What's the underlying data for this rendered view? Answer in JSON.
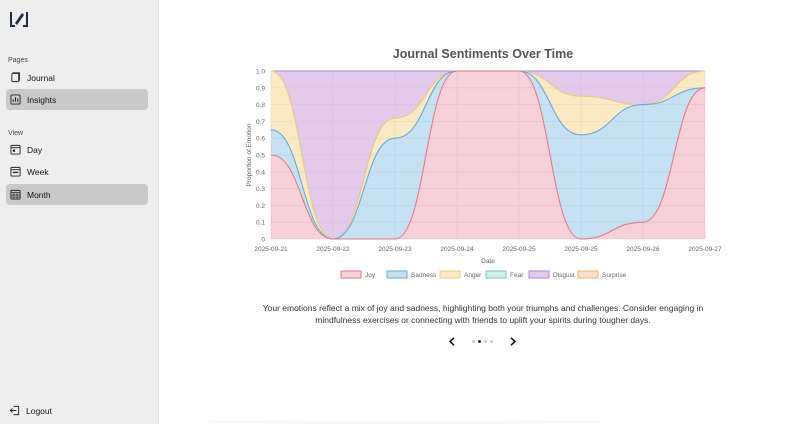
{
  "sidebar": {
    "sections": [
      {
        "label": "Pages",
        "items": [
          {
            "label": "Journal",
            "icon": "journal-icon",
            "active": false
          },
          {
            "label": "Insights",
            "icon": "chart-icon",
            "active": true
          }
        ]
      },
      {
        "label": "View",
        "items": [
          {
            "label": "Day",
            "icon": "calendar-day-icon",
            "active": false
          },
          {
            "label": "Week",
            "icon": "calendar-week-icon",
            "active": false
          },
          {
            "label": "Month",
            "icon": "calendar-month-icon",
            "active": true
          }
        ]
      }
    ],
    "logout_label": "Logout"
  },
  "chart_data": {
    "type": "area",
    "title": "Journal Sentiments Over Time",
    "xlabel": "Date",
    "ylabel": "Proportion of Emotion",
    "ylim": [
      0,
      1
    ],
    "yticks": [
      "0",
      "0.1",
      "0.2",
      "0.3",
      "0.4",
      "0.5",
      "0.6",
      "0.7",
      "0.8",
      "0.9",
      "1.0"
    ],
    "categories": [
      "2025-09-21",
      "2025-09-22",
      "2025-09-23",
      "2025-09-24",
      "2025-09-25",
      "2025-09-25",
      "2025-09-26",
      "2025-09-27"
    ],
    "stacked": true,
    "legend_position": "bottom",
    "series": [
      {
        "name": "Joy",
        "color": "#e07a8c",
        "fill": "rgba(236,140,160,0.40)",
        "values": [
          0.5,
          0.0,
          0.0,
          1.0,
          1.0,
          0.0,
          0.1,
          0.9
        ]
      },
      {
        "name": "Sadness",
        "color": "#6aa8d8",
        "fill": "rgba(150,200,232,0.55)",
        "values": [
          0.15,
          0.0,
          0.6,
          0.0,
          0.0,
          0.62,
          0.7,
          0.0
        ]
      },
      {
        "name": "Anger",
        "color": "#f0cc84",
        "fill": "rgba(245,215,150,0.55)",
        "values": [
          0.35,
          0.0,
          0.12,
          0.0,
          0.0,
          0.23,
          0.0,
          0.1
        ]
      },
      {
        "name": "Fear",
        "color": "#7fc4c4",
        "fill": "rgba(170,220,220,0.55)",
        "values": [
          0.0,
          0.0,
          0.0,
          0.0,
          0.0,
          0.0,
          0.0,
          0.0
        ]
      },
      {
        "name": "Disgust",
        "color": "#a88ad8",
        "fill": "rgba(215,180,225,0.70)",
        "values": [
          0.0,
          1.0,
          0.28,
          0.0,
          0.0,
          0.15,
          0.2,
          0.0
        ]
      },
      {
        "name": "Surprise",
        "color": "#f2b27a",
        "fill": "rgba(245,200,160,0.55)",
        "values": [
          0.0,
          0.0,
          0.0,
          0.0,
          0.0,
          0.0,
          0.0,
          0.0
        ]
      }
    ]
  },
  "insight": {
    "summary": "Your emotions reflect a mix of joy and sadness, highlighting both your triumphs and challenges. Consider engaging in mindfulness exercises or connecting with friends to uplift your spirits during tougher days."
  },
  "carousel": {
    "prev_icon": "chevron-left-icon",
    "next_icon": "chevron-right-icon",
    "dot_count": 4,
    "active_index": 1
  }
}
